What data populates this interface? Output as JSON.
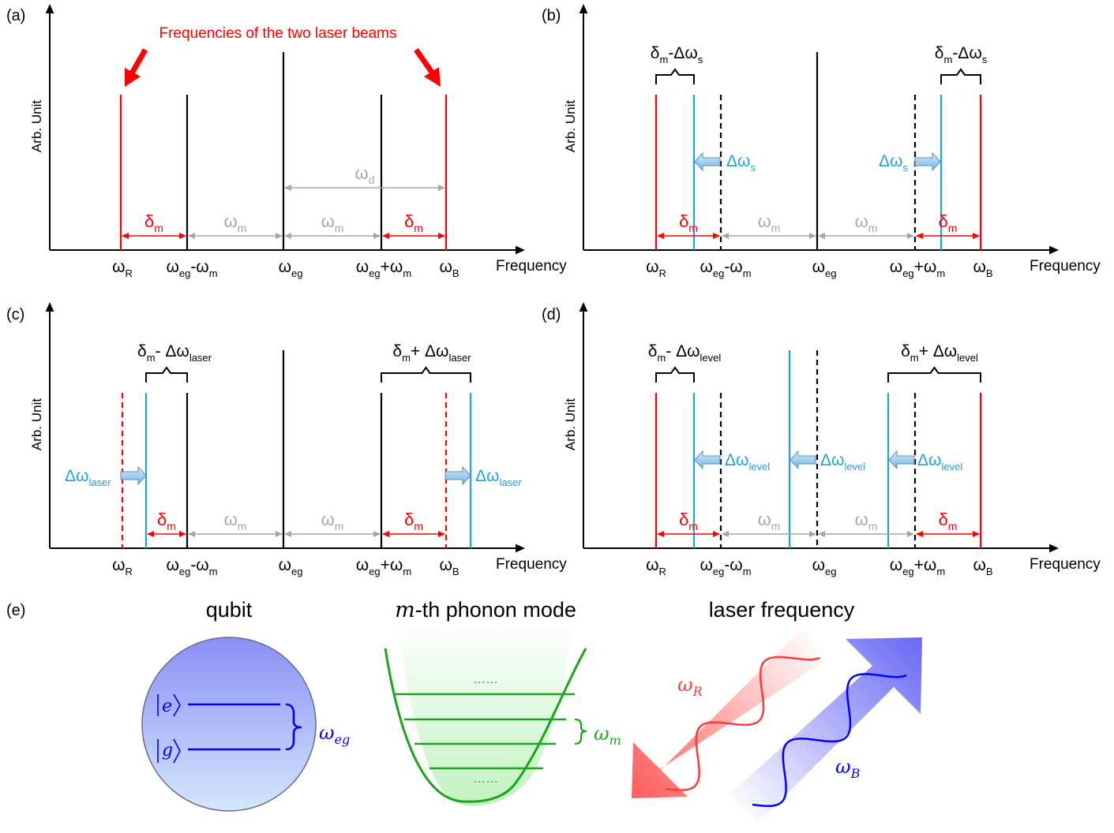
{
  "colors": {
    "black": "#000000",
    "red": "#ff0000",
    "cyan": "#1ea4dc",
    "gray": "#a6a6a6",
    "blue": "#0000ff",
    "green": "#1aa51a",
    "green_text": "#21a521"
  },
  "panel_labels": {
    "a": "(a)",
    "b": "(b)",
    "c": "(c)",
    "d": "(d)",
    "e": "(e)"
  },
  "common": {
    "ylabel": "Arb. Unit",
    "xlabel": "Frequency",
    "ticks": [
      {
        "main": "ω",
        "sub": "R",
        "post": "",
        "post_sub": ""
      },
      {
        "main": "ω",
        "sub": "eg",
        "post": "-ω",
        "post_sub": "m"
      },
      {
        "main": "ω",
        "sub": "eg",
        "post": "",
        "post_sub": ""
      },
      {
        "main": "ω",
        "sub": "eg",
        "post": "+ω",
        "post_sub": "m"
      },
      {
        "main": "ω",
        "sub": "B",
        "post": "",
        "post_sub": ""
      }
    ],
    "delta_m": {
      "main": "δ",
      "sub": "m"
    },
    "omega_m": {
      "main": "ω",
      "sub": "m"
    }
  },
  "panel_a": {
    "annotation": "Frequencies of the two laser beams",
    "omega_d": {
      "main": "ω",
      "sub": "d"
    }
  },
  "panel_b": {
    "bracket_left": {
      "main": "δ",
      "sub": "m",
      "post": "-Δω",
      "post_sub": "s"
    },
    "bracket_right": {
      "main": "δ",
      "sub": "m",
      "post": "-Δω",
      "post_sub": "s"
    },
    "shift_label": {
      "main": "Δω",
      "sub": "s"
    }
  },
  "panel_c": {
    "bracket_left": {
      "main": "δ",
      "sub": "m",
      "post": "- Δω",
      "post_sub": "laser"
    },
    "bracket_right": {
      "main": "δ",
      "sub": "m",
      "post": "+ Δω",
      "post_sub": "laser"
    },
    "shift_label": {
      "main": "Δω",
      "sub": "laser"
    }
  },
  "panel_d": {
    "bracket_left": {
      "main": "δ",
      "sub": "m",
      "post": "- Δω",
      "post_sub": "level"
    },
    "bracket_right": {
      "main": "δ",
      "sub": "m",
      "post": "+ Δω",
      "post_sub": "level"
    },
    "shift_label": {
      "main": "Δω",
      "sub": "level"
    }
  },
  "panel_e": {
    "qubit_title": "qubit",
    "phonon_title_italic": "m",
    "phonon_title_rest": "-th phonon mode",
    "laser_title": "laser frequency",
    "ket_e": "e",
    "ket_g": "g",
    "omega_eg": {
      "main": "ω",
      "sub": "eg"
    },
    "omega_m": {
      "main": "ω",
      "sub": "m"
    },
    "omega_R": {
      "main": "ω",
      "sub": "R"
    },
    "omega_B": {
      "main": "ω",
      "sub": "B"
    },
    "dots": "……"
  }
}
